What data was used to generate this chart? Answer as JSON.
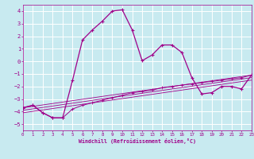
{
  "xlabel": "Windchill (Refroidissement éolien,°C)",
  "bg_color": "#c8eaf0",
  "grid_color": "#ffffff",
  "line_color": "#a0008a",
  "xlim": [
    0,
    23
  ],
  "ylim": [
    -5.5,
    4.5
  ],
  "xticks": [
    0,
    1,
    2,
    3,
    4,
    5,
    6,
    7,
    8,
    9,
    10,
    11,
    12,
    13,
    14,
    15,
    16,
    17,
    18,
    19,
    20,
    21,
    22,
    23
  ],
  "yticks": [
    -5,
    -4,
    -3,
    -2,
    -1,
    0,
    1,
    2,
    3,
    4
  ],
  "curve1_x": [
    0,
    1,
    2,
    3,
    4,
    5,
    6,
    7,
    8,
    9,
    10,
    11,
    12,
    13,
    14,
    15,
    16,
    17,
    18,
    19,
    20,
    21,
    22,
    23
  ],
  "curve1_y": [
    -3.7,
    -3.5,
    -4.1,
    -4.5,
    -4.5,
    -1.5,
    1.7,
    2.5,
    3.2,
    4.0,
    4.1,
    2.5,
    0.05,
    0.5,
    1.3,
    1.3,
    0.7,
    -1.3,
    -2.6,
    -2.5,
    -2.0,
    -2.0,
    -2.2,
    -1.1
  ],
  "curve2_x": [
    0,
    1,
    2,
    3,
    4,
    5,
    6,
    7,
    8,
    9,
    10,
    11,
    12,
    13,
    14,
    15,
    16,
    17,
    18,
    19,
    20,
    21,
    22,
    23
  ],
  "curve2_y": [
    -3.7,
    -3.5,
    -4.1,
    -4.5,
    -4.5,
    -3.8,
    -3.5,
    -3.3,
    -3.1,
    -2.9,
    -2.7,
    -2.5,
    -2.4,
    -2.3,
    -2.1,
    -2.0,
    -1.9,
    -1.8,
    -1.7,
    -1.6,
    -1.5,
    -1.4,
    -1.3,
    -1.1
  ],
  "line1_x": [
    0,
    23
  ],
  "line1_y": [
    -3.7,
    -1.1
  ],
  "line2_x": [
    0,
    23
  ],
  "line2_y": [
    -3.9,
    -1.3
  ],
  "line3_x": [
    0,
    23
  ],
  "line3_y": [
    -4.1,
    -1.5
  ]
}
